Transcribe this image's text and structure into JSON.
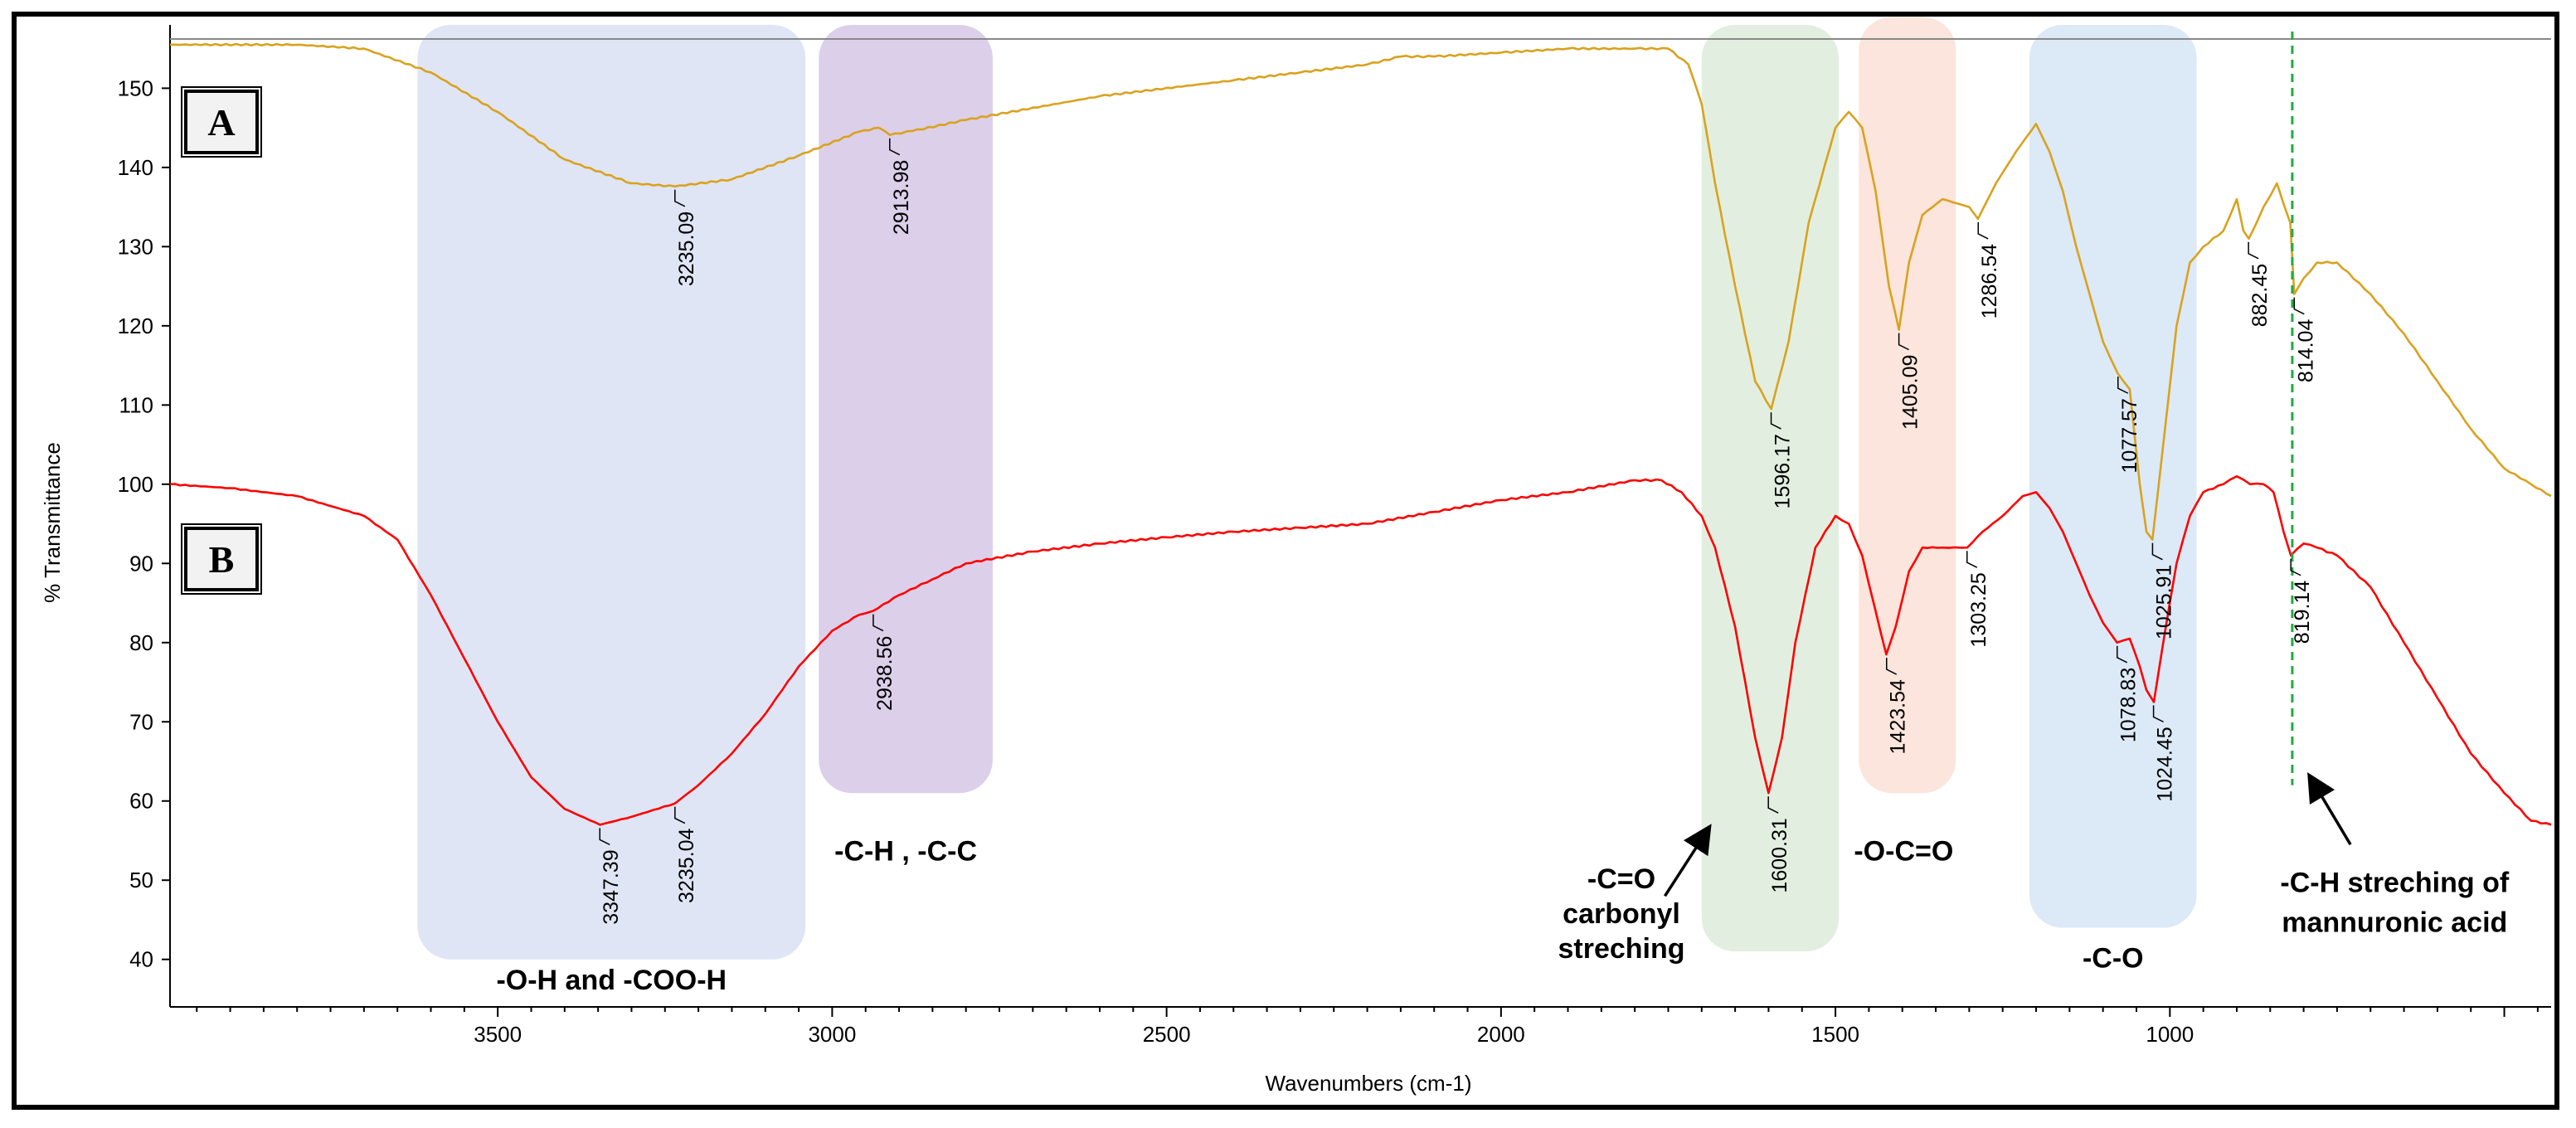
{
  "chart_data": {
    "type": "line",
    "title": "",
    "xlabel": "Wavenumbers (cm-1)",
    "ylabel": "% Transmittance",
    "xlim": [
      3990,
      430
    ],
    "ylim": [
      34,
      158
    ],
    "x_reversed": true,
    "x_ticks": [
      3500,
      3000,
      2500,
      2000,
      1500,
      1000
    ],
    "y_ticks": [
      40,
      50,
      60,
      70,
      80,
      90,
      100,
      110,
      120,
      130,
      140,
      150
    ],
    "grid": false,
    "colors": {
      "A": "#d9a21f",
      "B": "#ff0000",
      "marker": "#22aa44"
    },
    "series": [
      {
        "name": "A",
        "x": [
          3990,
          3800,
          3700,
          3600,
          3500,
          3400,
          3300,
          3235,
          3150,
          3050,
          2960,
          2930,
          2914,
          2880,
          2800,
          2600,
          2400,
          2300,
          2200,
          2150,
          2100,
          2000,
          1900,
          1800,
          1750,
          1720,
          1700,
          1680,
          1650,
          1620,
          1596,
          1570,
          1540,
          1500,
          1480,
          1460,
          1440,
          1420,
          1405,
          1390,
          1370,
          1340,
          1300,
          1287,
          1260,
          1230,
          1200,
          1180,
          1160,
          1140,
          1120,
          1100,
          1078,
          1060,
          1045,
          1035,
          1026,
          1010,
          990,
          970,
          950,
          920,
          900,
          890,
          882,
          860,
          840,
          820,
          814,
          800,
          780,
          750,
          700,
          650,
          600,
          550,
          500,
          460,
          430
        ],
        "y": [
          155.5,
          155.5,
          155,
          152,
          147,
          141,
          138,
          137.6,
          138.5,
          141.5,
          144.5,
          145,
          144.1,
          144.6,
          146,
          149,
          151,
          152,
          153,
          154,
          154,
          154.5,
          155,
          155,
          155,
          153,
          148,
          138,
          125,
          113,
          109.5,
          118,
          133,
          145,
          147,
          145,
          137,
          125,
          119.5,
          128,
          134,
          136,
          135,
          133.5,
          138,
          142,
          145.5,
          142,
          137,
          130,
          124,
          118,
          114,
          112,
          100,
          94,
          93,
          105,
          120,
          128,
          130,
          132,
          136,
          132,
          131,
          135,
          138,
          133,
          124,
          126,
          128,
          128,
          124,
          119,
          113,
          107,
          102,
          100,
          98.5
        ]
      },
      {
        "name": "B",
        "x": [
          3990,
          3900,
          3800,
          3700,
          3650,
          3600,
          3550,
          3500,
          3450,
          3400,
          3347,
          3300,
          3235,
          3200,
          3150,
          3100,
          3050,
          3000,
          2960,
          2939,
          2900,
          2850,
          2800,
          2700,
          2600,
          2500,
          2400,
          2300,
          2200,
          2100,
          2000,
          1900,
          1800,
          1760,
          1730,
          1700,
          1680,
          1650,
          1620,
          1600,
          1580,
          1560,
          1530,
          1500,
          1480,
          1460,
          1440,
          1424,
          1410,
          1390,
          1370,
          1340,
          1303,
          1280,
          1250,
          1220,
          1200,
          1180,
          1160,
          1140,
          1120,
          1100,
          1079,
          1060,
          1045,
          1035,
          1024,
          1010,
          990,
          970,
          950,
          920,
          900,
          880,
          860,
          845,
          830,
          819,
          800,
          780,
          750,
          700,
          650,
          600,
          550,
          500,
          460,
          430
        ],
        "y": [
          100,
          99.5,
          98.5,
          96,
          93,
          86,
          78,
          70,
          63,
          59,
          57,
          58,
          59.7,
          62,
          66,
          71,
          77,
          81.5,
          83.5,
          84,
          86,
          88,
          90,
          91.5,
          92.5,
          93.3,
          94,
          94.5,
          95,
          96.5,
          98,
          99,
          100.5,
          100.5,
          99,
          96,
          92,
          82,
          68,
          61,
          68,
          80,
          92,
          96,
          95,
          91,
          84,
          78.5,
          82,
          89,
          92,
          92,
          92,
          94,
          96,
          98.5,
          99,
          97,
          94,
          90,
          86,
          82.5,
          80,
          80.5,
          77,
          74,
          72.5,
          80,
          90,
          96,
          99,
          100,
          101,
          100,
          100,
          99,
          94,
          91,
          92.5,
          92,
          91,
          87,
          80,
          73,
          66,
          61,
          57.5,
          57
        ]
      }
    ],
    "peak_labels": [
      {
        "series": "A",
        "x": 3235.09,
        "y": 137.6,
        "label": "3235.09"
      },
      {
        "series": "A",
        "x": 2913.98,
        "y": 144.1,
        "label": "2913.98"
      },
      {
        "series": "A",
        "x": 1596.17,
        "y": 109.5,
        "label": "1596.17"
      },
      {
        "series": "A",
        "x": 1405.09,
        "y": 119.5,
        "label": "1405.09"
      },
      {
        "series": "A",
        "x": 1286.54,
        "y": 133.5,
        "label": "1286.54"
      },
      {
        "series": "A",
        "x": 1077.57,
        "y": 114,
        "label": "1077.57"
      },
      {
        "series": "A",
        "x": 1025.91,
        "y": 93,
        "label": "1025.91"
      },
      {
        "series": "A",
        "x": 882.45,
        "y": 131,
        "label": "882.45"
      },
      {
        "series": "A",
        "x": 814.04,
        "y": 124,
        "label": "814.04"
      },
      {
        "series": "B",
        "x": 3347.39,
        "y": 57,
        "label": "3347.39"
      },
      {
        "series": "B",
        "x": 3235.04,
        "y": 59.7,
        "label": "3235.04"
      },
      {
        "series": "B",
        "x": 2938.56,
        "y": 84,
        "label": "2938.56"
      },
      {
        "series": "B",
        "x": 1600.31,
        "y": 61,
        "label": "1600.31"
      },
      {
        "series": "B",
        "x": 1423.54,
        "y": 78.5,
        "label": "1423.54"
      },
      {
        "series": "B",
        "x": 1303.25,
        "y": 92,
        "label": "1303.25"
      },
      {
        "series": "B",
        "x": 1078.83,
        "y": 80,
        "label": "1078.83"
      },
      {
        "series": "B",
        "x": 1024.45,
        "y": 72.5,
        "label": "1024.45"
      },
      {
        "series": "B",
        "x": 819.14,
        "y": 91,
        "label": "819.14"
      }
    ],
    "regions": [
      {
        "x1": 3620,
        "x2": 3040,
        "y1": 40,
        "y2": 158,
        "color": "#dfe5f4",
        "label": "-O-H and -COO-H"
      },
      {
        "x1": 3020,
        "x2": 2760,
        "y1": 61,
        "y2": 158,
        "color": "#dccfe9",
        "label": "-C-H , -C-C"
      },
      {
        "x1": 1700,
        "x2": 1495,
        "y1": 41,
        "y2": 158,
        "color": "#e2efe0",
        "label": "-C=O\ncarbonyl\nstreching"
      },
      {
        "x1": 1465,
        "x2": 1320,
        "y1": 61,
        "y2": 159,
        "color": "#fbe5dc",
        "label": "-O-C=O"
      },
      {
        "x1": 1210,
        "x2": 960,
        "y1": 44,
        "y2": 158,
        "color": "#dce9f6",
        "label": "-C-O"
      }
    ],
    "vertical_marker": {
      "x": 817,
      "label": "-C-H streching of\nmannuronic acid"
    },
    "panel_labels": [
      "A",
      "B"
    ]
  }
}
